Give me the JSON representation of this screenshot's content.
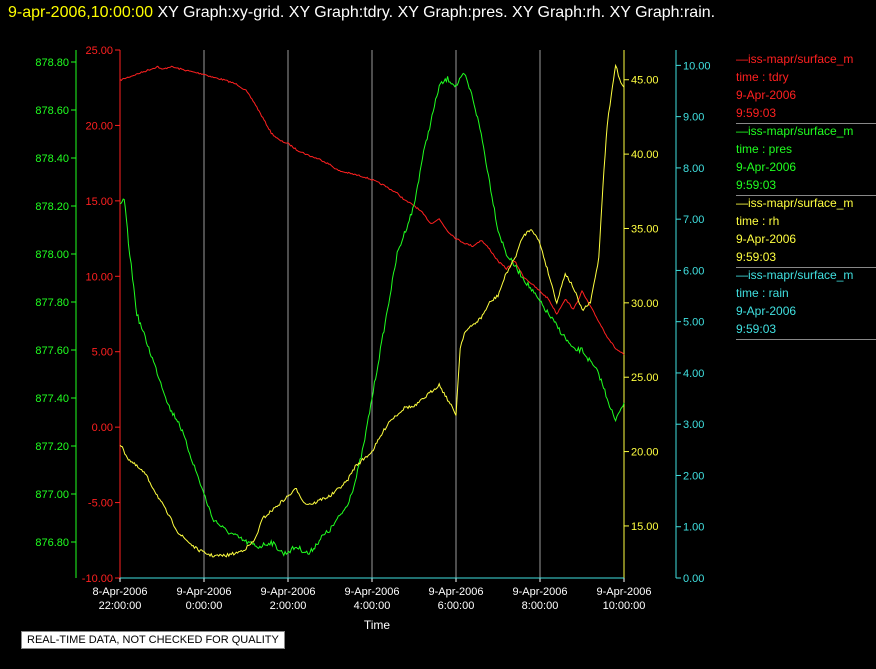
{
  "header": {
    "timestamp": "9-apr-2006,10:00:00",
    "titles": [
      "XY Graph:xy-grid.",
      "XY Graph:tdry.",
      "XY Graph:pres.",
      "XY Graph:rh.",
      "XY Graph:rain."
    ]
  },
  "note": "REAL-TIME DATA, NOT CHECKED FOR QUALITY",
  "chart_data": {
    "type": "line",
    "xlabel": "Time",
    "x_ticks": [
      {
        "date": "8-Apr-2006",
        "time": "22:00:00",
        "hours": 0
      },
      {
        "date": "9-Apr-2006",
        "time": "0:00:00",
        "hours": 2
      },
      {
        "date": "9-Apr-2006",
        "time": "2:00:00",
        "hours": 4
      },
      {
        "date": "9-Apr-2006",
        "time": "4:00:00",
        "hours": 6
      },
      {
        "date": "9-Apr-2006",
        "time": "6:00:00",
        "hours": 8
      },
      {
        "date": "9-Apr-2006",
        "time": "8:00:00",
        "hours": 10
      },
      {
        "date": "9-Apr-2006",
        "time": "10:00:00",
        "hours": 12
      }
    ],
    "grid": "vertical",
    "axes": {
      "tdry": {
        "color": "#ff2020",
        "range": [
          -10,
          25
        ],
        "ticks": [
          "25.00",
          "20.00",
          "15.00",
          "10.00",
          "5.00",
          "0.00",
          "-5.00",
          "-10.00"
        ]
      },
      "pres": {
        "color": "#20ff20",
        "range": [
          876.65,
          878.85
        ],
        "ticks": [
          "878.80",
          "878.60",
          "878.40",
          "878.20",
          "878.00",
          "877.80",
          "877.60",
          "877.40",
          "877.20",
          "877.00",
          "876.80"
        ]
      },
      "rh": {
        "color": "#ffff40",
        "range": [
          11.5,
          47
        ],
        "ticks": [
          "45.00",
          "40.00",
          "35.00",
          "30.00",
          "25.00",
          "20.00",
          "15.00"
        ]
      },
      "rain": {
        "color": "#40e0e0",
        "range": [
          0,
          10.3
        ],
        "ticks": [
          "10.00",
          "9.00",
          "8.00",
          "7.00",
          "6.00",
          "5.00",
          "4.00",
          "3.00",
          "2.00",
          "1.00",
          "0.00"
        ]
      }
    },
    "series": [
      {
        "axis": "tdry",
        "x": [
          0,
          0.3,
          0.6,
          0.9,
          1.0,
          1.2,
          1.5,
          1.8,
          2.0,
          2.2,
          2.5,
          2.8,
          3.0,
          3.2,
          3.4,
          3.6,
          3.8,
          4.0,
          4.2,
          4.5,
          4.8,
          5.0,
          5.2,
          5.5,
          5.8,
          6.0,
          6.3,
          6.6,
          6.8,
          7.0,
          7.2,
          7.4,
          7.6,
          7.8,
          8.0,
          8.2,
          8.4,
          8.6,
          8.8,
          9.0,
          9.2,
          9.4,
          9.6,
          9.8,
          10.0,
          10.2,
          10.4,
          10.6,
          10.8,
          11.0,
          11.2,
          11.4,
          11.6,
          11.8,
          12.0
        ],
        "y": [
          23.0,
          23.3,
          23.6,
          23.9,
          23.7,
          23.9,
          23.7,
          23.5,
          23.4,
          23.2,
          23.0,
          22.7,
          22.3,
          21.5,
          20.5,
          19.5,
          19.0,
          18.8,
          18.4,
          18.0,
          17.7,
          17.4,
          17.0,
          16.8,
          16.6,
          16.4,
          16.0,
          15.5,
          15.0,
          14.7,
          14.2,
          13.5,
          13.8,
          13.0,
          12.5,
          12.2,
          12.0,
          12.4,
          11.8,
          11.0,
          10.5,
          11.0,
          10.0,
          9.5,
          9.0,
          8.5,
          7.5,
          8.5,
          7.8,
          9.0,
          8.0,
          7.0,
          6.0,
          5.2,
          4.8
        ]
      },
      {
        "axis": "pres",
        "x": [
          0,
          0.1,
          0.2,
          0.3,
          0.4,
          0.6,
          0.8,
          1.0,
          1.2,
          1.4,
          1.6,
          1.8,
          2.0,
          2.2,
          2.5,
          2.8,
          3.0,
          3.3,
          3.6,
          3.9,
          4.2,
          4.5,
          4.8,
          5.0,
          5.2,
          5.4,
          5.6,
          5.8,
          6.0,
          6.2,
          6.4,
          6.6,
          6.8,
          7.0,
          7.2,
          7.4,
          7.6,
          7.8,
          8.0,
          8.2,
          8.4,
          8.6,
          8.8,
          9.0,
          9.2,
          9.4,
          9.6,
          9.8,
          10.0,
          10.2,
          10.4,
          10.6,
          10.8,
          11.0,
          11.2,
          11.4,
          11.6,
          11.8,
          11.9,
          12.0
        ],
        "y": [
          878.2,
          878.23,
          878.05,
          877.9,
          877.75,
          877.65,
          877.55,
          877.45,
          877.35,
          877.3,
          877.2,
          877.1,
          877.0,
          876.9,
          876.85,
          876.82,
          876.8,
          876.78,
          876.8,
          876.75,
          876.78,
          876.75,
          876.82,
          876.85,
          876.9,
          876.95,
          877.05,
          877.2,
          877.4,
          877.6,
          877.8,
          878.0,
          878.1,
          878.2,
          878.4,
          878.55,
          878.7,
          878.73,
          878.7,
          878.75,
          878.65,
          878.5,
          878.3,
          878.1,
          878.0,
          877.95,
          877.9,
          877.85,
          877.8,
          877.75,
          877.7,
          877.65,
          877.6,
          877.6,
          877.55,
          877.5,
          877.4,
          877.3,
          877.35,
          877.38
        ]
      },
      {
        "axis": "rh",
        "x": [
          0,
          0.2,
          0.4,
          0.6,
          0.8,
          1.0,
          1.2,
          1.4,
          1.6,
          1.8,
          2.0,
          2.2,
          2.5,
          2.8,
          3.0,
          3.2,
          3.4,
          3.6,
          3.8,
          4.0,
          4.2,
          4.4,
          4.6,
          4.8,
          5.0,
          5.2,
          5.4,
          5.6,
          5.8,
          6.0,
          6.2,
          6.4,
          6.6,
          6.8,
          7.0,
          7.2,
          7.4,
          7.6,
          7.8,
          8.0,
          8.1,
          8.2,
          8.4,
          8.6,
          8.8,
          9.0,
          9.2,
          9.4,
          9.6,
          9.8,
          10.0,
          10.2,
          10.4,
          10.6,
          10.8,
          11.0,
          11.2,
          11.4,
          11.5,
          11.6,
          11.7,
          11.8,
          11.9,
          12.0
        ],
        "y": [
          20.5,
          19.5,
          19.0,
          18.5,
          17.5,
          16.5,
          15.5,
          14.5,
          14.0,
          13.5,
          13.2,
          13.0,
          13.0,
          13.2,
          13.5,
          14.0,
          15.5,
          16.0,
          16.5,
          17.0,
          17.5,
          16.5,
          16.5,
          16.8,
          17.0,
          17.5,
          18.0,
          19.0,
          19.5,
          20.0,
          21.0,
          22.0,
          22.5,
          23.0,
          23.0,
          23.5,
          24.0,
          24.5,
          23.5,
          22.5,
          27.0,
          28.0,
          28.5,
          29.0,
          30.0,
          30.5,
          32.0,
          33.0,
          34.5,
          35.0,
          34.0,
          32.0,
          30.0,
          32.0,
          31.0,
          29.5,
          30.0,
          33.0,
          38.0,
          42.0,
          44.0,
          46.0,
          45.0,
          44.5
        ]
      },
      {
        "axis": "rain",
        "x": [
          0,
          12
        ],
        "y": [
          0,
          0
        ]
      }
    ]
  },
  "legend": [
    {
      "name": "—iss-mapr/surface_m",
      "field": "time : tdry",
      "date": "9-Apr-2006",
      "time": "9:59:03",
      "color": "#ff2020"
    },
    {
      "name": "—iss-mapr/surface_m",
      "field": "time : pres",
      "date": "9-Apr-2006",
      "time": "9:59:03",
      "color": "#20ff20"
    },
    {
      "name": "—iss-mapr/surface_m",
      "field": "time : rh",
      "date": "9-Apr-2006",
      "time": "9:59:03",
      "color": "#ffff40"
    },
    {
      "name": "—iss-mapr/surface_m",
      "field": "time : rain",
      "date": "9-Apr-2006",
      "time": "9:59:03",
      "color": "#40e0e0"
    }
  ]
}
